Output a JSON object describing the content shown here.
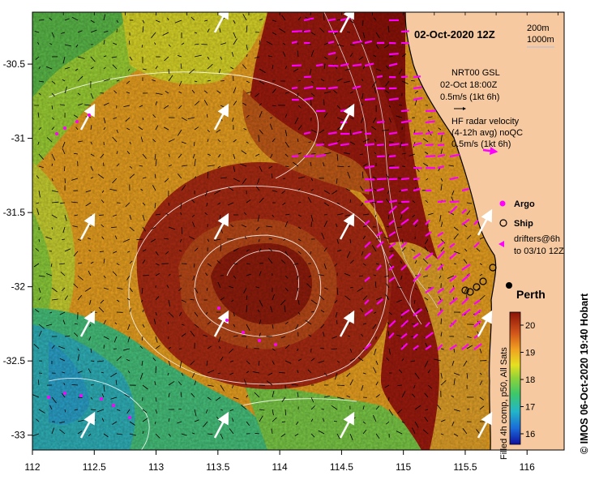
{
  "map": {
    "title": "02-Oct-2020 12Z",
    "depth_contours": [
      "200m",
      "1000m"
    ],
    "legend": {
      "nrt_line1": "NRT00 GSL",
      "nrt_line2": "02-Oct 18:00Z",
      "nrt_scale": "0.5m/s (1kt 6h)",
      "hf_line1": "HF radar velocity",
      "hf_line2": "(4-12h avg) noQC",
      "hf_scale": "0.5m/s (1kt 6h)",
      "argo_label": "Argo",
      "ship_label": "Ship",
      "drifters_line1": "drifters@6h",
      "drifters_line2": "to 03/10 12Z"
    },
    "city_label": "Perth",
    "colorbar": {
      "caption": "Filled 4h comp, p50, All Sats",
      "ticks": [
        "16",
        "17",
        "18",
        "19",
        "20"
      ]
    },
    "credit": "© IMOS 06-Oct-2020 19:40 Hobart",
    "x_axis": {
      "ticks": [
        "112",
        "112.5",
        "113",
        "113.5",
        "114",
        "114.5",
        "115",
        "115.5",
        "116"
      ]
    },
    "y_axis": {
      "ticks": [
        "-30.5",
        "-31",
        "-31.5",
        "-32",
        "-32.5",
        "-33"
      ]
    },
    "colors": {
      "land": "#f6c9a0",
      "warm": "#9c1a0e",
      "hf_vectors": "#ff00ff",
      "contour": "#ffffff"
    }
  }
}
